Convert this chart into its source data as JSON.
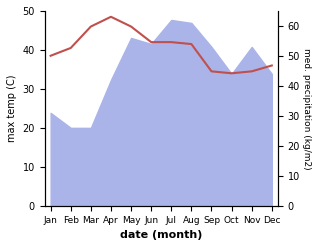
{
  "months": [
    "Jan",
    "Feb",
    "Mar",
    "Apr",
    "May",
    "Jun",
    "Jul",
    "Aug",
    "Sep",
    "Oct",
    "Nov",
    "Dec"
  ],
  "x": [
    0,
    1,
    2,
    3,
    4,
    5,
    6,
    7,
    8,
    9,
    10,
    11
  ],
  "temp": [
    38.5,
    40.5,
    46.0,
    48.5,
    46.0,
    42.0,
    42.0,
    41.5,
    34.5,
    34.0,
    34.5,
    36.0
  ],
  "precip": [
    31.0,
    26.0,
    26.0,
    42.0,
    56.0,
    54.0,
    62.0,
    61.0,
    53.0,
    44.0,
    53.0,
    44.0
  ],
  "temp_color": "#c0504d",
  "precip_fill_color": "#aab4e8",
  "ylabel_left": "max temp (C)",
  "ylabel_right": "med. precipitation (kg/m2)",
  "xlabel": "date (month)",
  "ylim_left": [
    0,
    50
  ],
  "ylim_right": [
    0,
    65
  ],
  "yticks_left": [
    0,
    10,
    20,
    30,
    40,
    50
  ],
  "yticks_right": [
    0,
    10,
    20,
    30,
    40,
    50,
    60
  ],
  "background_color": "#ffffff"
}
